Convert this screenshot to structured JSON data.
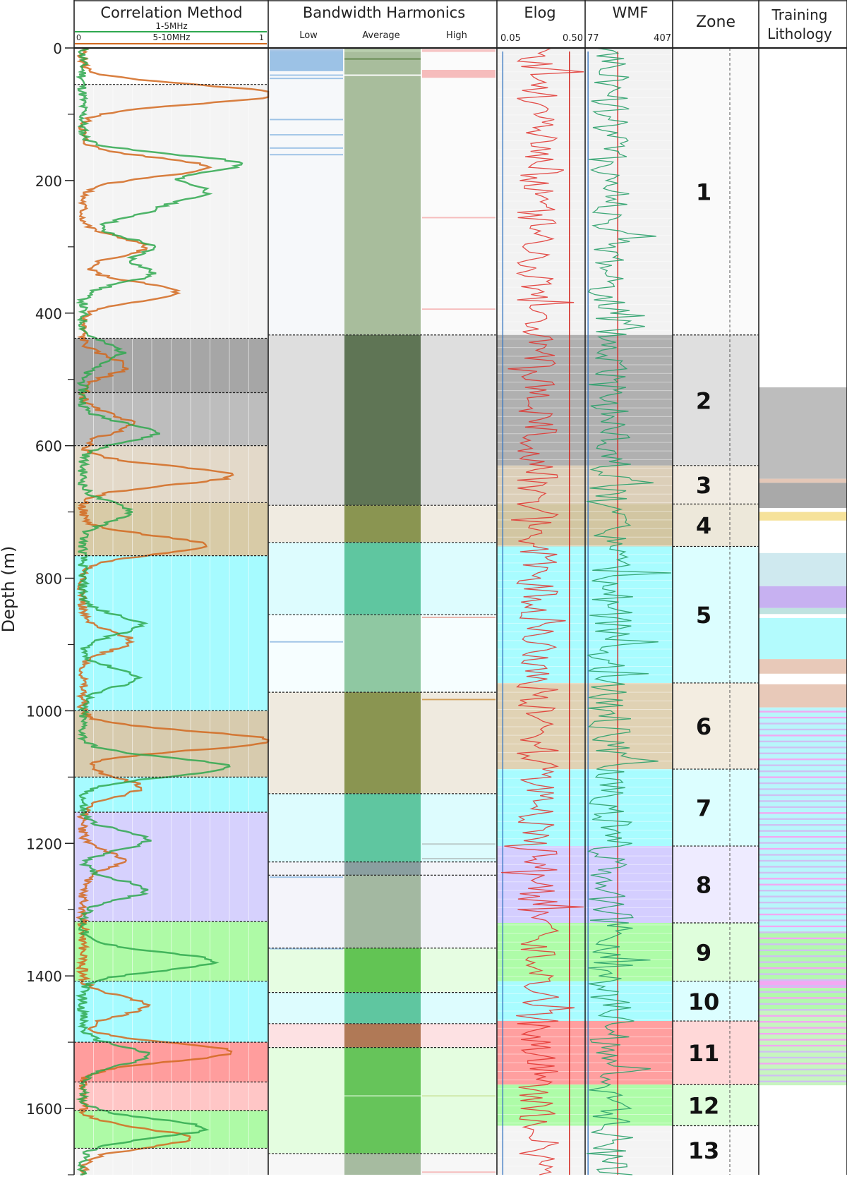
{
  "chart_data": {
    "type": "well-log",
    "ylabel": "Depth (m)",
    "ylim": [
      0,
      1700
    ],
    "y_ticks": [
      0,
      200,
      400,
      600,
      800,
      1000,
      1200,
      1400,
      1600
    ],
    "y_minor_ticks": [
      100,
      300,
      500,
      700,
      900,
      1100,
      1300,
      1500,
      1700
    ],
    "tracks": {
      "correlation": {
        "title": "Correlation Method",
        "scale_min": "0",
        "scale_max": "1",
        "series": [
          {
            "name": "1-5MHz",
            "color": "#2fa84f"
          },
          {
            "name": "5-10MHz",
            "color": "#d2691e"
          }
        ]
      },
      "harmonics": {
        "title": "Bandwidth Harmonics",
        "columns": [
          "Low",
          "Average",
          "High"
        ]
      },
      "elog": {
        "title": "Elog",
        "scale_min": "0.05",
        "scale_max": "0.50",
        "reference_values": [
          0.08,
          0.42
        ]
      },
      "wmf": {
        "title": "WMF",
        "scale_min": "77",
        "scale_max": "407",
        "reference_values": [
          88,
          200
        ]
      },
      "zone": {
        "title": "Zone"
      },
      "lithology": {
        "title": "Training Lithology"
      }
    },
    "zones": [
      {
        "label": "1",
        "top": 0,
        "base": 433,
        "color": "#f2f2f2"
      },
      {
        "label": "2",
        "top": 433,
        "base": 630,
        "color": "#b0b0b0"
      },
      {
        "label": "3",
        "top": 630,
        "base": 688,
        "color": "#dccfb9"
      },
      {
        "label": "4",
        "top": 688,
        "base": 752,
        "color": "#d2c6a2"
      },
      {
        "label": "5",
        "top": 752,
        "base": 958,
        "color": "#a8fcff"
      },
      {
        "label": "6",
        "top": 958,
        "base": 1088,
        "color": "#e0d2b4"
      },
      {
        "label": "7",
        "top": 1088,
        "base": 1204,
        "color": "#a8fcff"
      },
      {
        "label": "8",
        "top": 1204,
        "base": 1320,
        "color": "#d4ceff"
      },
      {
        "label": "9",
        "top": 1320,
        "base": 1408,
        "color": "#aefca8"
      },
      {
        "label": "10",
        "top": 1408,
        "base": 1468,
        "color": "#a8fcff"
      },
      {
        "label": "11",
        "top": 1468,
        "base": 1564,
        "color": "#ff9f9f"
      },
      {
        "label": "12",
        "top": 1564,
        "base": 1626,
        "color": "#aefca8"
      },
      {
        "label": "13",
        "top": 1626,
        "base": 1700,
        "color": "#f4f4f4"
      }
    ],
    "correlation_intervals": [
      {
        "top": 0,
        "base": 55,
        "color": "#ffffff"
      },
      {
        "top": 55,
        "base": 438,
        "color": "#f4f4f4"
      },
      {
        "top": 438,
        "base": 520,
        "color": "#a6a6a6"
      },
      {
        "top": 520,
        "base": 600,
        "color": "#bdbdbd"
      },
      {
        "top": 600,
        "base": 686,
        "color": "#e3d9c9"
      },
      {
        "top": 686,
        "base": 766,
        "color": "#d8cba7"
      },
      {
        "top": 766,
        "base": 1000,
        "color": "#a6fbff"
      },
      {
        "top": 1000,
        "base": 1100,
        "color": "#d7cbae"
      },
      {
        "top": 1100,
        "base": 1153,
        "color": "#a6fbff"
      },
      {
        "top": 1153,
        "base": 1318,
        "color": "#d6d1fd"
      },
      {
        "top": 1318,
        "base": 1408,
        "color": "#aefaa6"
      },
      {
        "top": 1408,
        "base": 1500,
        "color": "#a6fbff"
      },
      {
        "top": 1500,
        "base": 1560,
        "color": "#ff9d9d"
      },
      {
        "top": 1560,
        "base": 1603,
        "color": "#ffc6c6"
      },
      {
        "top": 1603,
        "base": 1660,
        "color": "#aefaa6"
      },
      {
        "top": 1660,
        "base": 1700,
        "color": "#f4f4f4"
      }
    ],
    "harmonic_intervals": [
      {
        "top": 0,
        "base": 433,
        "low": "#f6f8fa",
        "average": "#a8bd9c",
        "high": "#fbfbfb"
      },
      {
        "top": 433,
        "base": 690,
        "low": "#dedede",
        "average": "#5f7555",
        "high": "#dedede"
      },
      {
        "top": 690,
        "base": 746,
        "low": "#f0ebe1",
        "average": "#8a9551",
        "high": "#f0ebe1"
      },
      {
        "top": 746,
        "base": 855,
        "low": "#ddfcfe",
        "average": "#5fc6a0",
        "high": "#ddfcfe"
      },
      {
        "top": 855,
        "base": 972,
        "low": "#f6feff",
        "average": "#8fc8a2",
        "high": "#f6feff"
      },
      {
        "top": 972,
        "base": 1125,
        "low": "#efeadf",
        "average": "#8a9551",
        "high": "#efeadf"
      },
      {
        "top": 1125,
        "base": 1228,
        "low": "#ddfcfe",
        "average": "#5fc6a0",
        "high": "#ddfcfe"
      },
      {
        "top": 1228,
        "base": 1248,
        "low": "#f3f3f8",
        "average": "#8a9fa0",
        "high": "#f3f3f8"
      },
      {
        "top": 1248,
        "base": 1358,
        "low": "#f4f4fa",
        "average": "#a3b8a1",
        "high": "#f4f4fa"
      },
      {
        "top": 1358,
        "base": 1425,
        "low": "#e6fde2",
        "average": "#62c454",
        "high": "#e6fde2"
      },
      {
        "top": 1425,
        "base": 1472,
        "low": "#ddfcfe",
        "average": "#5fc6a0",
        "high": "#ddfcfe"
      },
      {
        "top": 1472,
        "base": 1508,
        "low": "#fde1e3",
        "average": "#b07956",
        "high": "#fde1e3"
      },
      {
        "top": 1508,
        "base": 1668,
        "low": "#e4fde0",
        "average": "#66c45a",
        "high": "#e4fde0"
      },
      {
        "top": 1668,
        "base": 1700,
        "low": "#f7f7f7",
        "average": "#a6bba0",
        "high": "#f7f7f7"
      }
    ],
    "lithology_intervals": [
      {
        "top": 512,
        "base": 650,
        "color": "#bdbdbd"
      },
      {
        "top": 650,
        "base": 656,
        "color": "#e4c7b7"
      },
      {
        "top": 656,
        "base": 694,
        "color": "#a9a9a9"
      },
      {
        "top": 700,
        "base": 713,
        "color": "#f6e29a"
      },
      {
        "top": 762,
        "base": 812,
        "color": "#cfe9ef"
      },
      {
        "top": 812,
        "base": 845,
        "color": "#c7b1f1"
      },
      {
        "top": 845,
        "base": 854,
        "color": "#bfe3e0"
      },
      {
        "top": 860,
        "base": 922,
        "color": "#b3fbfd"
      },
      {
        "top": 922,
        "base": 944,
        "color": "#e8c9b9"
      },
      {
        "top": 960,
        "base": 995,
        "color": "#e8c9b9"
      },
      {
        "top": 995,
        "base": 1333,
        "color": "#b8f6fb"
      },
      {
        "top": 1333,
        "base": 1405,
        "color": "#b3f8ad"
      },
      {
        "top": 1405,
        "base": 1418,
        "color": "#f2a8f2"
      },
      {
        "top": 1418,
        "base": 1452,
        "color": "#b3f8ad"
      },
      {
        "top": 1452,
        "base": 1565,
        "color": "#c7f5bf"
      }
    ],
    "correlation_peaks_1to5": [
      {
        "depth": 175,
        "value": 0.8
      },
      {
        "depth": 215,
        "value": 0.6
      },
      {
        "depth": 245,
        "value": 0.3
      },
      {
        "depth": 300,
        "value": 0.35
      },
      {
        "depth": 340,
        "value": 0.35
      },
      {
        "depth": 460,
        "value": 0.2
      },
      {
        "depth": 580,
        "value": 0.38
      },
      {
        "depth": 700,
        "value": 0.25
      },
      {
        "depth": 870,
        "value": 0.3
      },
      {
        "depth": 950,
        "value": 0.28
      },
      {
        "depth": 1085,
        "value": 0.75
      },
      {
        "depth": 1195,
        "value": 0.33
      },
      {
        "depth": 1270,
        "value": 0.33
      },
      {
        "depth": 1378,
        "value": 0.67
      },
      {
        "depth": 1520,
        "value": 0.33
      },
      {
        "depth": 1630,
        "value": 0.63
      }
    ],
    "correlation_peaks_5to10": [
      {
        "depth": 70,
        "value": 1.0
      },
      {
        "depth": 180,
        "value": 0.65
      },
      {
        "depth": 300,
        "value": 0.32
      },
      {
        "depth": 368,
        "value": 0.48
      },
      {
        "depth": 480,
        "value": 0.22
      },
      {
        "depth": 567,
        "value": 0.25
      },
      {
        "depth": 645,
        "value": 0.77
      },
      {
        "depth": 750,
        "value": 0.62
      },
      {
        "depth": 895,
        "value": 0.25
      },
      {
        "depth": 1045,
        "value": 0.97
      },
      {
        "depth": 1115,
        "value": 0.3
      },
      {
        "depth": 1225,
        "value": 0.2
      },
      {
        "depth": 1445,
        "value": 0.33
      },
      {
        "depth": 1515,
        "value": 0.77
      },
      {
        "depth": 1645,
        "value": 0.55
      }
    ],
    "elog_color": "#e0302c",
    "wmf_color": "#2aa06a"
  },
  "labels": {
    "ylabel": "Depth (m)",
    "corr_title": "Correlation Method",
    "corr_series_1": "1-5MHz",
    "corr_series_2": "5-10MHz",
    "corr_min": "0",
    "corr_max": "1",
    "harm_title": "Bandwidth Harmonics",
    "harm_low": "Low",
    "harm_avg": "Average",
    "harm_high": "High",
    "elog_title": "Elog",
    "elog_min": "0.05",
    "elog_max": "0.50",
    "wmf_title": "WMF",
    "wmf_min": "77",
    "wmf_max": "407",
    "zone_title": "Zone",
    "lith_title_1": "Training",
    "lith_title_2": "Lithology"
  }
}
